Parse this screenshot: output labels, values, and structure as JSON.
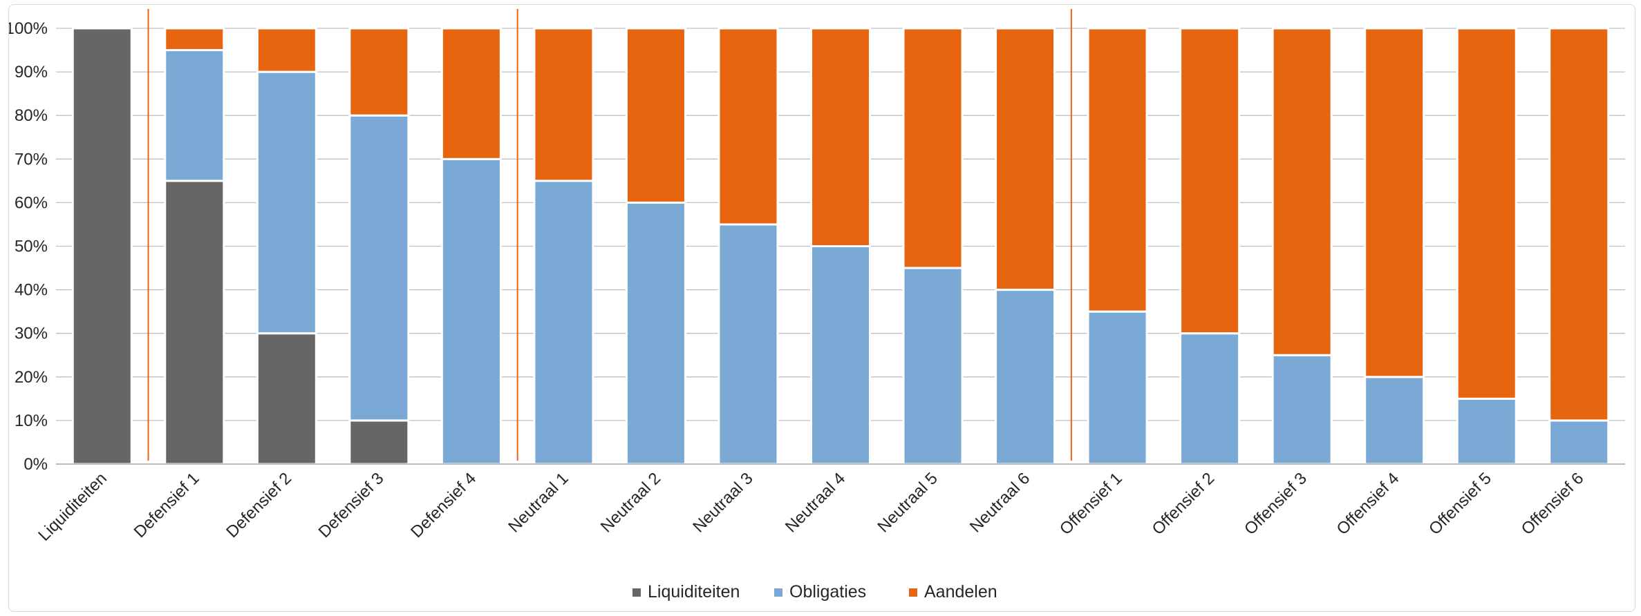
{
  "chart_data": {
    "type": "bar",
    "stacked": true,
    "categories": [
      "Liquiditeiten",
      "Defensief 1",
      "Defensief 2",
      "Defensief 3",
      "Defensief 4",
      "Neutraal 1",
      "Neutraal 2",
      "Neutraal 3",
      "Neutraal 4",
      "Neutraal 5",
      "Neutraal 6",
      "Offensief 1",
      "Offensief 2",
      "Offensief 3",
      "Offensief 4",
      "Offensief 5",
      "Offensief 6"
    ],
    "series": [
      {
        "name": "Liquiditeiten",
        "color": "#666666",
        "values": [
          100,
          65,
          30,
          10,
          0,
          0,
          0,
          0,
          0,
          0,
          0,
          0,
          0,
          0,
          0,
          0,
          0
        ]
      },
      {
        "name": "Obligaties",
        "color": "#7aa9d6",
        "values": [
          0,
          30,
          60,
          70,
          70,
          65,
          60,
          55,
          50,
          45,
          40,
          35,
          30,
          25,
          20,
          15,
          10
        ]
      },
      {
        "name": "Aandelen",
        "color": "#e8650f",
        "values": [
          0,
          5,
          10,
          20,
          30,
          35,
          40,
          45,
          50,
          55,
          60,
          65,
          70,
          75,
          80,
          85,
          90
        ]
      }
    ],
    "ylim": [
      0,
      100
    ],
    "yticks": [
      "0%",
      "10%",
      "20%",
      "30%",
      "40%",
      "50%",
      "60%",
      "70%",
      "80%",
      "90%",
      "100%"
    ],
    "xlabel": "",
    "ylabel": "",
    "grid": true,
    "legend_position": "bottom",
    "group_separators_after": [
      "Liquiditeiten",
      "Defensief 4",
      "Neutraal 6"
    ],
    "separator_color": "#e8650f"
  }
}
